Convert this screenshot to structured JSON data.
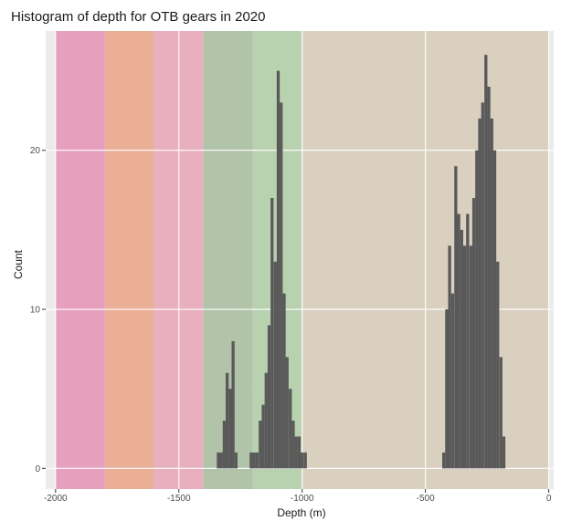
{
  "chart_data": {
    "type": "bar",
    "title": "Histogram of depth for OTB gears in 2020",
    "xlabel": "Depth (m)",
    "ylabel": "Count",
    "xlim": [
      -2040,
      20
    ],
    "ylim": [
      -1.3,
      27.5
    ],
    "x_ticks": [
      -2000,
      -1500,
      -1000,
      -500,
      0
    ],
    "x_tick_labels": [
      "-2000",
      "-1500",
      "-1000",
      "-500",
      "0"
    ],
    "y_ticks": [
      0,
      10,
      20
    ],
    "y_tick_labels": [
      "0",
      "10",
      "20"
    ],
    "grid": true,
    "legend": "none",
    "background_bands": [
      {
        "from": -2000,
        "to": -1800,
        "color": "#E6A0BE"
      },
      {
        "from": -1800,
        "to": -1600,
        "color": "#EBAE96"
      },
      {
        "from": -1600,
        "to": -1400,
        "color": "#E8AFBF"
      },
      {
        "from": -1400,
        "to": -1200,
        "color": "#B1C3A8"
      },
      {
        "from": -1200,
        "to": -1000,
        "color": "#B8D2AF"
      },
      {
        "from": -1000,
        "to": 0,
        "color": "#D9D0C0"
      }
    ],
    "bar_color": "#595959",
    "bin_width": 12.2,
    "bins": [
      {
        "x": -1340,
        "y": 1
      },
      {
        "x": -1328,
        "y": 1
      },
      {
        "x": -1316,
        "y": 3
      },
      {
        "x": -1304,
        "y": 6
      },
      {
        "x": -1292,
        "y": 5
      },
      {
        "x": -1280,
        "y": 8
      },
      {
        "x": -1268,
        "y": 1
      },
      {
        "x": -1207,
        "y": 1
      },
      {
        "x": -1195,
        "y": 1
      },
      {
        "x": -1183,
        "y": 1
      },
      {
        "x": -1170,
        "y": 3
      },
      {
        "x": -1158,
        "y": 4
      },
      {
        "x": -1146,
        "y": 6
      },
      {
        "x": -1134,
        "y": 9
      },
      {
        "x": -1122,
        "y": 17
      },
      {
        "x": -1109,
        "y": 13
      },
      {
        "x": -1097,
        "y": 25
      },
      {
        "x": -1085,
        "y": 23
      },
      {
        "x": -1073,
        "y": 11
      },
      {
        "x": -1061,
        "y": 7
      },
      {
        "x": -1048,
        "y": 5
      },
      {
        "x": -1036,
        "y": 3
      },
      {
        "x": -1024,
        "y": 2
      },
      {
        "x": -1012,
        "y": 2
      },
      {
        "x": -1000,
        "y": 1
      },
      {
        "x": -987,
        "y": 1
      },
      {
        "x": -426,
        "y": 1
      },
      {
        "x": -414,
        "y": 10
      },
      {
        "x": -402,
        "y": 14
      },
      {
        "x": -390,
        "y": 11
      },
      {
        "x": -377,
        "y": 19
      },
      {
        "x": -365,
        "y": 16
      },
      {
        "x": -353,
        "y": 15
      },
      {
        "x": -341,
        "y": 14
      },
      {
        "x": -329,
        "y": 16
      },
      {
        "x": -316,
        "y": 14
      },
      {
        "x": -304,
        "y": 17
      },
      {
        "x": -292,
        "y": 20
      },
      {
        "x": -280,
        "y": 22
      },
      {
        "x": -268,
        "y": 23
      },
      {
        "x": -255,
        "y": 26
      },
      {
        "x": -243,
        "y": 24
      },
      {
        "x": -231,
        "y": 22
      },
      {
        "x": -219,
        "y": 20
      },
      {
        "x": -207,
        "y": 13
      },
      {
        "x": -194,
        "y": 7
      },
      {
        "x": -182,
        "y": 2
      }
    ]
  }
}
